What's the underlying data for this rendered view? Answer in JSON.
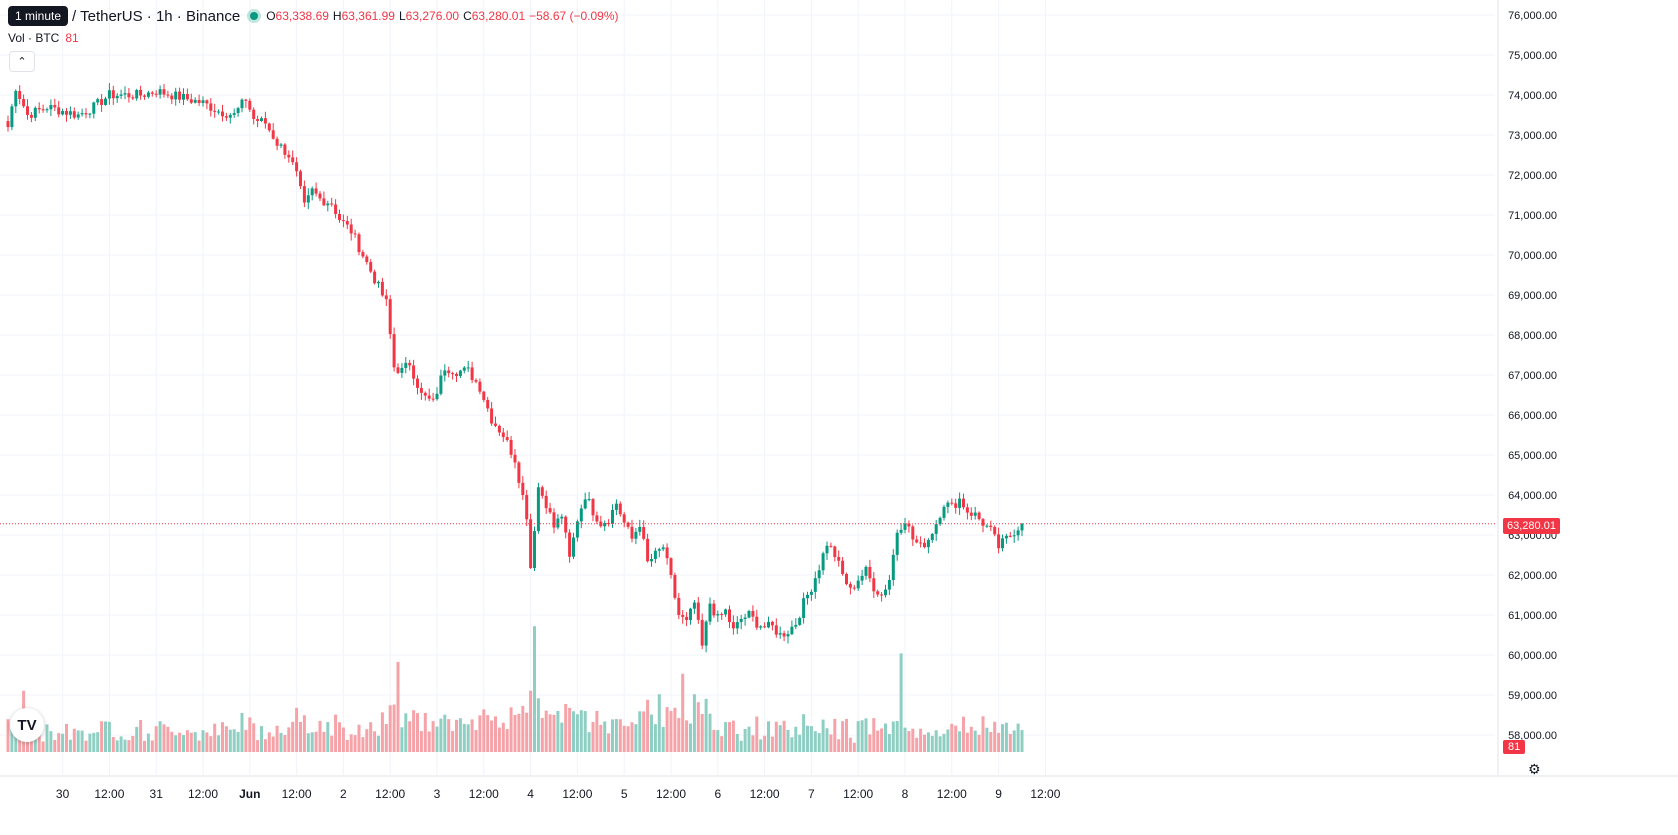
{
  "legend": {
    "tooltip": "1 minute",
    "symbol": "/ TetherUS · 1h · Binance",
    "open_label": "O",
    "open": "63,338.69",
    "high_label": "H",
    "high": "63,361.99",
    "low_label": "L",
    "low": "63,276.00",
    "close_label": "C",
    "close": "63,280.01",
    "change": "−58.67 (−0.09%)",
    "vol_label": "Vol · BTC",
    "vol_value": "81"
  },
  "colors": {
    "up": "#089981",
    "down": "#f23645",
    "up_vol": "#8fcfc3",
    "down_vol": "#f5a3a8",
    "grid": "#f0f3fa"
  },
  "logo": "TV",
  "collapse_icon": "chevron-up-icon",
  "settings_icon": "gear-icon",
  "chart_data": {
    "type": "candlestick",
    "interval": "1h",
    "ylim": [
      57500,
      76000
    ],
    "y_ticks": [
      "76,000.00",
      "75,000.00",
      "74,000.00",
      "73,000.00",
      "72,000.00",
      "71,000.00",
      "70,000.00",
      "69,000.00",
      "68,000.00",
      "67,000.00",
      "66,000.00",
      "65,000.00",
      "64,000.00",
      "63,000.00",
      "62,000.00",
      "61,000.00",
      "60,000.00",
      "59,000.00",
      "58,000.00"
    ],
    "x_ticks": [
      {
        "label": "30",
        "hour": 14
      },
      {
        "label": "12:00",
        "hour": 26
      },
      {
        "label": "31",
        "hour": 38
      },
      {
        "label": "12:00",
        "hour": 50
      },
      {
        "label": "Jun",
        "hour": 62
      },
      {
        "label": "12:00",
        "hour": 74
      },
      {
        "label": "2",
        "hour": 86
      },
      {
        "label": "12:00",
        "hour": 98
      },
      {
        "label": "3",
        "hour": 110
      },
      {
        "label": "12:00",
        "hour": 122
      },
      {
        "label": "4",
        "hour": 134
      },
      {
        "label": "12:00",
        "hour": 146
      },
      {
        "label": "5",
        "hour": 158
      },
      {
        "label": "12:00",
        "hour": 170
      },
      {
        "label": "6",
        "hour": 182
      },
      {
        "label": "12:00",
        "hour": 194
      },
      {
        "label": "7",
        "hour": 206
      },
      {
        "label": "12:00",
        "hour": 218
      },
      {
        "label": "8",
        "hour": 230
      },
      {
        "label": "12:00",
        "hour": 242
      },
      {
        "label": "9",
        "hour": 254
      },
      {
        "label": "12:00",
        "hour": 266
      }
    ],
    "last_price": 63280.01,
    "last_price_label": "63,280.01",
    "last_volume_label": "81",
    "anchors": [
      [
        0,
        73200
      ],
      [
        2,
        74200
      ],
      [
        5,
        73500
      ],
      [
        10,
        73700
      ],
      [
        14,
        73600
      ],
      [
        18,
        73500
      ],
      [
        22,
        73700
      ],
      [
        26,
        74000
      ],
      [
        30,
        74000
      ],
      [
        34,
        74000
      ],
      [
        38,
        74100
      ],
      [
        42,
        74000
      ],
      [
        46,
        73900
      ],
      [
        50,
        73800
      ],
      [
        54,
        73600
      ],
      [
        58,
        73500
      ],
      [
        61,
        73900
      ],
      [
        63,
        73400
      ],
      [
        66,
        73300
      ],
      [
        69,
        72800
      ],
      [
        72,
        72500
      ],
      [
        74,
        72000
      ],
      [
        76,
        71200
      ],
      [
        78,
        71600
      ],
      [
        80,
        71400
      ],
      [
        83,
        71300
      ],
      [
        85,
        70900
      ],
      [
        88,
        70600
      ],
      [
        91,
        70000
      ],
      [
        94,
        69400
      ],
      [
        97,
        68800
      ],
      [
        99,
        67200
      ],
      [
        101,
        67100
      ],
      [
        103,
        67300
      ],
      [
        106,
        66500
      ],
      [
        109,
        66300
      ],
      [
        112,
        67200
      ],
      [
        115,
        67100
      ],
      [
        118,
        67100
      ],
      [
        121,
        66700
      ],
      [
        124,
        65900
      ],
      [
        127,
        65500
      ],
      [
        130,
        64900
      ],
      [
        133,
        63500
      ],
      [
        134,
        62200
      ],
      [
        136,
        64200
      ],
      [
        138,
        63800
      ],
      [
        140,
        63200
      ],
      [
        142,
        63500
      ],
      [
        144,
        62400
      ],
      [
        146,
        63400
      ],
      [
        148,
        64000
      ],
      [
        150,
        63600
      ],
      [
        152,
        63300
      ],
      [
        154,
        63400
      ],
      [
        156,
        63800
      ],
      [
        158,
        63300
      ],
      [
        160,
        62900
      ],
      [
        162,
        63300
      ],
      [
        164,
        62300
      ],
      [
        166,
        62500
      ],
      [
        168,
        62700
      ],
      [
        170,
        61900
      ],
      [
        172,
        61000
      ],
      [
        174,
        60800
      ],
      [
        176,
        61300
      ],
      [
        178,
        60200
      ],
      [
        180,
        61300
      ],
      [
        182,
        60900
      ],
      [
        184,
        61100
      ],
      [
        186,
        60600
      ],
      [
        188,
        60900
      ],
      [
        190,
        61000
      ],
      [
        192,
        60800
      ],
      [
        194,
        60700
      ],
      [
        196,
        60700
      ],
      [
        198,
        60500
      ],
      [
        200,
        60600
      ],
      [
        202,
        60800
      ],
      [
        204,
        61300
      ],
      [
        206,
        61700
      ],
      [
        208,
        62200
      ],
      [
        210,
        62800
      ],
      [
        212,
        62500
      ],
      [
        214,
        62000
      ],
      [
        216,
        61600
      ],
      [
        218,
        61900
      ],
      [
        220,
        62100
      ],
      [
        222,
        61700
      ],
      [
        224,
        61500
      ],
      [
        226,
        61900
      ],
      [
        228,
        63100
      ],
      [
        230,
        63400
      ],
      [
        232,
        62900
      ],
      [
        234,
        62700
      ],
      [
        236,
        62900
      ],
      [
        238,
        63300
      ],
      [
        240,
        63800
      ],
      [
        242,
        63700
      ],
      [
        244,
        63900
      ],
      [
        246,
        63600
      ],
      [
        248,
        63500
      ],
      [
        250,
        63300
      ],
      [
        252,
        63100
      ],
      [
        254,
        62700
      ],
      [
        256,
        62900
      ],
      [
        258,
        63100
      ],
      [
        260,
        63280
      ]
    ],
    "volume_spikes": [
      [
        4,
        1800
      ],
      [
        60,
        1150
      ],
      [
        74,
        1300
      ],
      [
        84,
        1100
      ],
      [
        100,
        2650
      ],
      [
        135,
        3700
      ],
      [
        137,
        1000
      ],
      [
        167,
        1700
      ],
      [
        173,
        2300
      ],
      [
        176,
        1700
      ],
      [
        229,
        2900
      ],
      [
        250,
        1050
      ]
    ]
  }
}
